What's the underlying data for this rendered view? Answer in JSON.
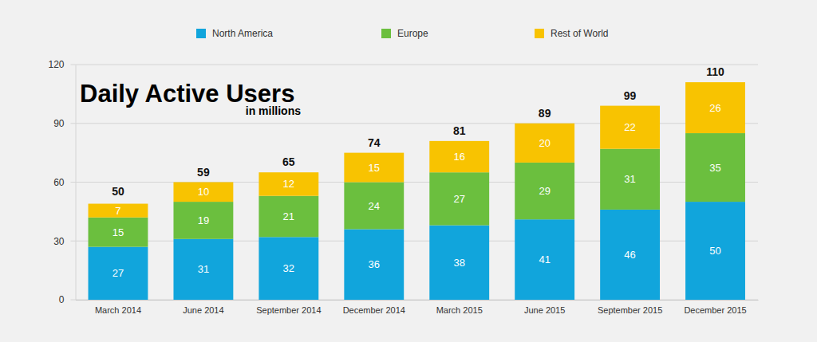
{
  "chart_data": {
    "type": "bar",
    "title": "Daily Active Users",
    "subtitle": "in millions",
    "categories": [
      "March 2014",
      "June 2014",
      "September 2014",
      "December 2014",
      "March 2015",
      "June 2015",
      "September 2015",
      "December 2015"
    ],
    "series": [
      {
        "name": "North America",
        "color": "#11a5dc",
        "values": [
          27,
          31,
          32,
          36,
          38,
          41,
          46,
          50
        ]
      },
      {
        "name": "Europe",
        "color": "#6bbf3e",
        "values": [
          15,
          19,
          21,
          24,
          27,
          29,
          31,
          35
        ]
      },
      {
        "name": "Rest of World",
        "color": "#f8c301",
        "values": [
          7,
          10,
          12,
          15,
          16,
          20,
          22,
          26
        ]
      }
    ],
    "totals": [
      50,
      59,
      65,
      74,
      81,
      89,
      99,
      110
    ],
    "ylim": [
      0,
      120
    ],
    "yticks": [
      0,
      30,
      60,
      90,
      120
    ],
    "grid": true,
    "stacked": true,
    "data_labels": true,
    "legend": "top"
  }
}
